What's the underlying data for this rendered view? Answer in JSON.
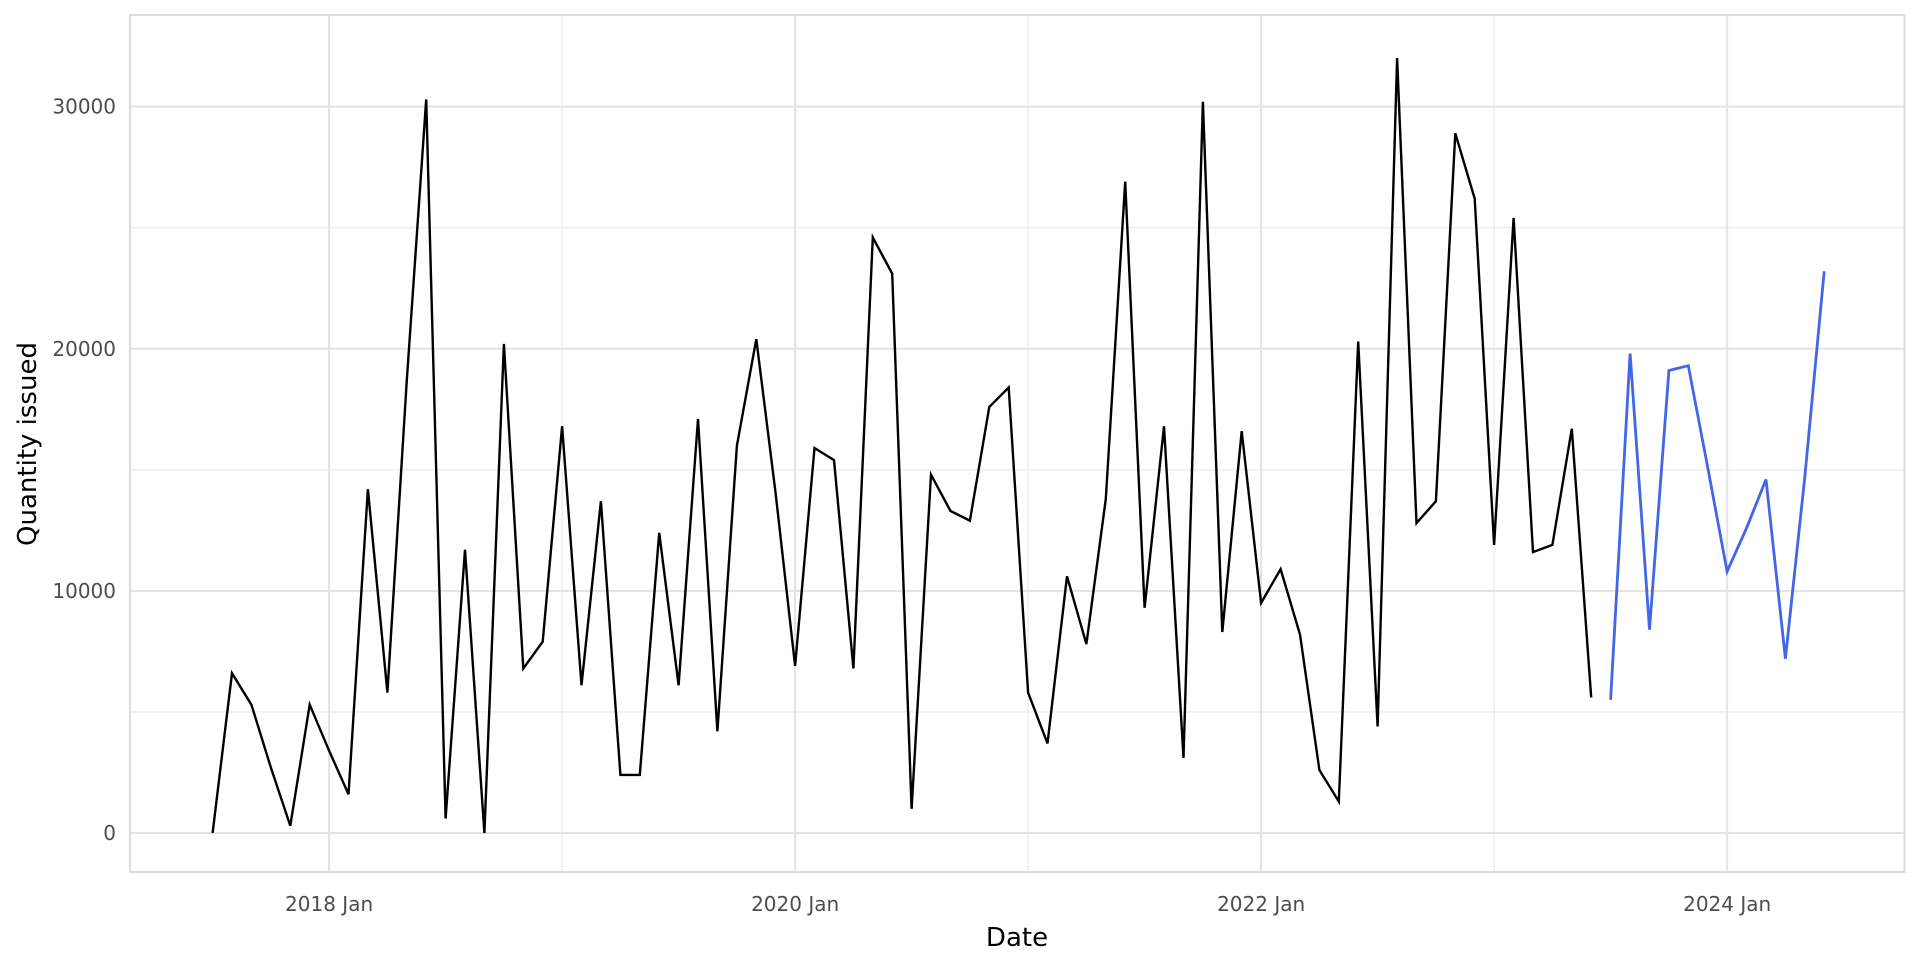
{
  "chart_data": {
    "type": "line",
    "title": "",
    "xlabel": "Date",
    "ylabel": "Quantity issued",
    "x_axis": {
      "major_ticks": [
        {
          "date": "2018-01",
          "label": "2018 Jan"
        },
        {
          "date": "2020-01",
          "label": "2020 Jan"
        },
        {
          "date": "2022-01",
          "label": "2022 Jan"
        },
        {
          "date": "2024-01",
          "label": "2024 Jan"
        }
      ],
      "minor_ticks": [
        "2019-01",
        "2021-01",
        "2023-01"
      ],
      "range": [
        "2017-07",
        "2024-06"
      ]
    },
    "y_axis": {
      "major_ticks": [
        {
          "value": 0,
          "label": "0"
        },
        {
          "value": 10000,
          "label": "10000"
        },
        {
          "value": 20000,
          "label": "20000"
        },
        {
          "value": 30000,
          "label": "30000"
        }
      ],
      "minor_ticks": [
        5000,
        15000,
        25000
      ],
      "range": [
        0,
        32000
      ]
    },
    "grid": true,
    "legend": "none",
    "series": [
      {
        "name": "actual",
        "color": "#000000",
        "start": "2017-07",
        "values": [
          0,
          6600,
          5300,
          2700,
          300,
          5300,
          3400,
          1600,
          14200,
          5800,
          18700,
          30300,
          600,
          11700,
          0,
          20200,
          6800,
          7900,
          16800,
          6100,
          13700,
          2400,
          2400,
          12400,
          6100,
          17100,
          4200,
          16000,
          20400,
          14000,
          6900,
          15900,
          15400,
          6800,
          24600,
          23100,
          1000,
          14800,
          13300,
          12900,
          17600,
          18400,
          5800,
          3700,
          10600,
          7800,
          13800,
          26900,
          9300,
          16800,
          3100,
          30200,
          8300,
          16600,
          9500,
          10900,
          8200,
          2600,
          1300,
          20300,
          4400,
          32000,
          12800,
          13700,
          28900,
          26200,
          11900,
          25400,
          11600,
          11900,
          16700,
          5600
        ]
      },
      {
        "name": "forecast",
        "color": "#4166E8",
        "start": "2023-07",
        "values": [
          5500,
          19800,
          8400,
          19100,
          19300,
          15100,
          10800,
          12600,
          14600,
          7200,
          14700,
          23200
        ]
      }
    ]
  },
  "colors": {
    "background": "#ffffff",
    "panel_background": "#ffffff",
    "grid_major": "#e3e3e3",
    "grid_minor": "#efefef",
    "panel_border": "#dcdcdc",
    "tick_text": "#4d4d4d",
    "axis_title_text": "#000000"
  }
}
